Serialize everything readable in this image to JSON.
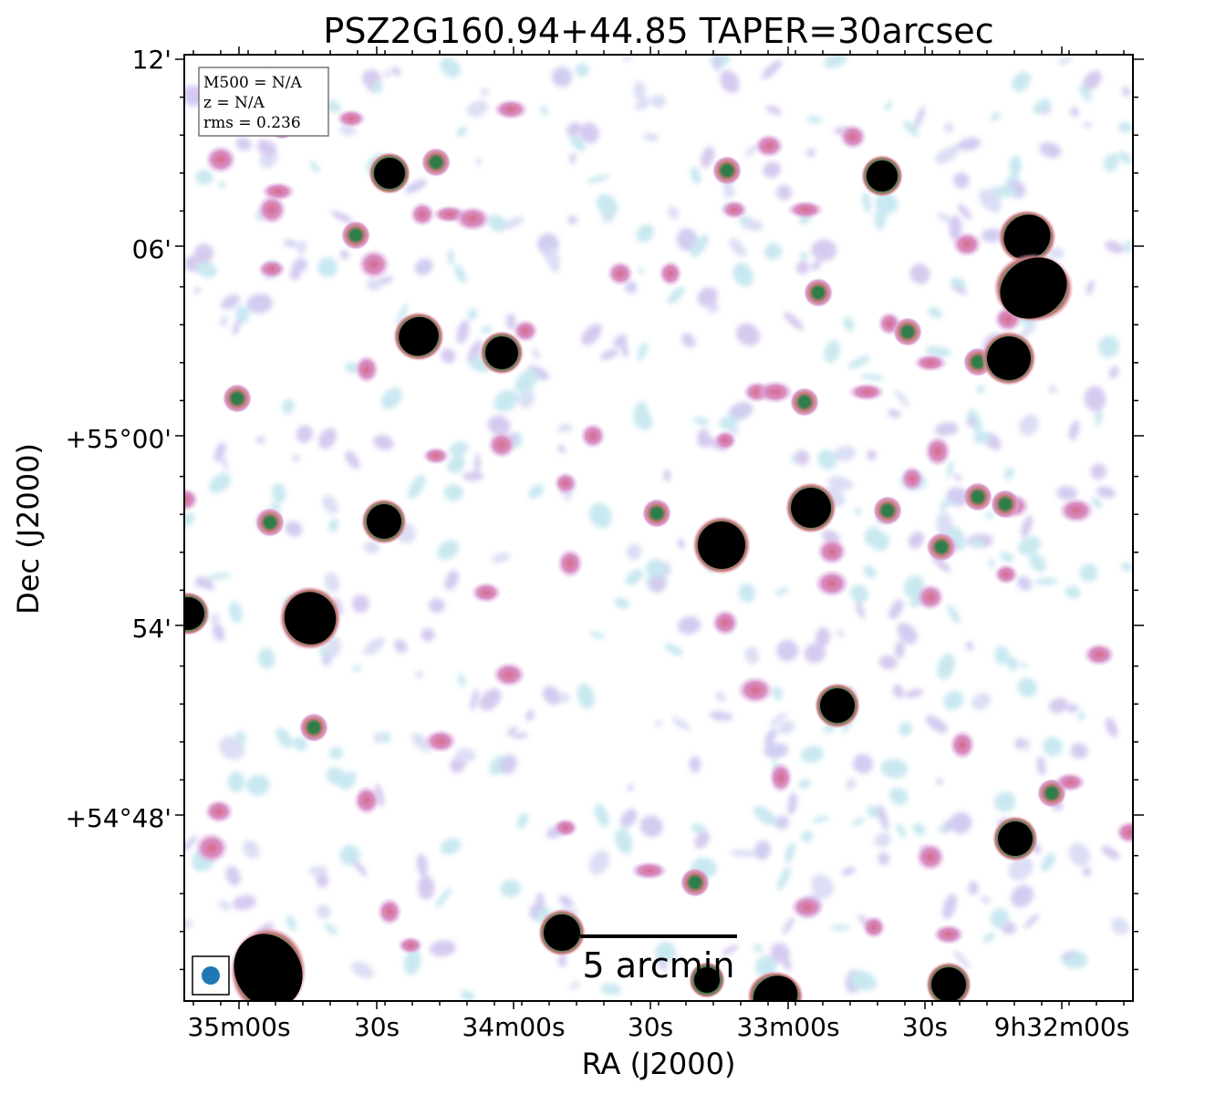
{
  "title": "PSZ2G160.94+44.85 TAPER=30arcsec",
  "axes": {
    "xlabel": "RA (J2000)",
    "ylabel": "Dec (J2000)",
    "x_ticks": [
      "35m00s",
      "30s",
      "34m00s",
      "30s",
      "33m00s",
      "30s",
      "9h32m00s"
    ],
    "y_ticks": [
      "12'",
      "06'",
      "+55°00'",
      "54'",
      "+54°48'"
    ]
  },
  "info_box": {
    "line1": "M500 = N/A",
    "line2": "z = N/A",
    "line3": "rms = 0.236"
  },
  "scalebar": {
    "label": "5 arcmin"
  },
  "beam": {
    "color": "#1f77b4"
  },
  "colors": {
    "source": "#000000",
    "halo_green": "#2f7d4a",
    "pink": "#d98fc4",
    "lavender": "#c8c4ee",
    "cyan": "#bfe4ee"
  }
}
